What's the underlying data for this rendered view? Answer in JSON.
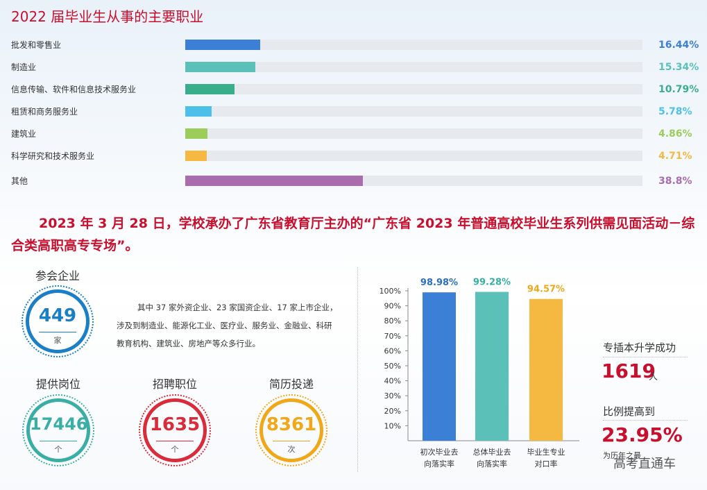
{
  "section_title": "2022 届毕业生从事的主要职业",
  "chart_data": [
    {
      "type": "bar",
      "orientation": "horizontal",
      "title": "2022 届毕业生从事的主要职业",
      "categories": [
        "批发和零售业",
        "制造业",
        "信息传输、软件和信息技术服务业",
        "租赁和商务服务业",
        "建筑业",
        "科学研究和技术服务业",
        "其他"
      ],
      "values": [
        16.44,
        15.34,
        10.79,
        5.78,
        4.86,
        4.71,
        38.8
      ],
      "labels": [
        "16.44%",
        "15.34%",
        "10.79%",
        "5.78%",
        "4.86%",
        "4.71%",
        "38.8%"
      ],
      "colors": [
        "#3b7fd6",
        "#5bc0b8",
        "#3aae8a",
        "#4cc0e8",
        "#9ccc5a",
        "#f5b942",
        "#a96dad"
      ],
      "xlim": [
        0,
        100
      ]
    },
    {
      "type": "bar",
      "categories": [
        "初次毕业去向落实率",
        "总体毕业去向落实率",
        "毕业生专业对口率"
      ],
      "category_lines": [
        [
          "初次毕业去",
          "向落实率"
        ],
        [
          "总体毕业去",
          "向落实率"
        ],
        [
          "毕业生专业",
          "对口率"
        ]
      ],
      "values": [
        98.98,
        99.28,
        94.57
      ],
      "labels": [
        "98.98%",
        "99.28%",
        "94.57%"
      ],
      "colors": [
        "#3b7fd6",
        "#5bc0b8",
        "#f5b942"
      ],
      "label_colors": [
        "#2a6fc4",
        "#3aaea5",
        "#f0a818"
      ],
      "ylim": [
        0,
        100
      ],
      "yticks": [
        "100%",
        "90%",
        "80%",
        "70%",
        "60%",
        "50%",
        "40%",
        "30%",
        "20%",
        "10%"
      ]
    }
  ],
  "statement": "2023 年 3 月 28 日，学校承办了广东省教育厅主办的“广东省 2023 年普通高校毕业生系列供需见面活动－综合类高职高专专场”。",
  "stats": {
    "companies": {
      "title": "参会企业",
      "value": "449",
      "unit": "家",
      "color": "#1a7fc4"
    },
    "positions": {
      "title": "提供岗位",
      "value": "17446",
      "unit": "个",
      "color": "#3aaea5"
    },
    "jobs": {
      "title": "招聘职位",
      "value": "1635",
      "unit": "个",
      "color": "#d92b3a"
    },
    "resumes": {
      "title": "简历投递",
      "value": "8361",
      "unit": "次",
      "color": "#f0a818"
    }
  },
  "description": "其中 37 家外资企业、23 家国资企业、17 家上市企业，涉及到制造业、能源化工业、医疗业、服务业、金融业、科研教育机构、建筑业、房地产等众多行业。",
  "upgrade": {
    "label": "专插本升学成功",
    "value": "1619",
    "unit": "人",
    "ratio_label": "比例提高到",
    "ratio_value": "23.95%",
    "ratio_note": "为历年之最"
  },
  "watermark": "高考直通车"
}
